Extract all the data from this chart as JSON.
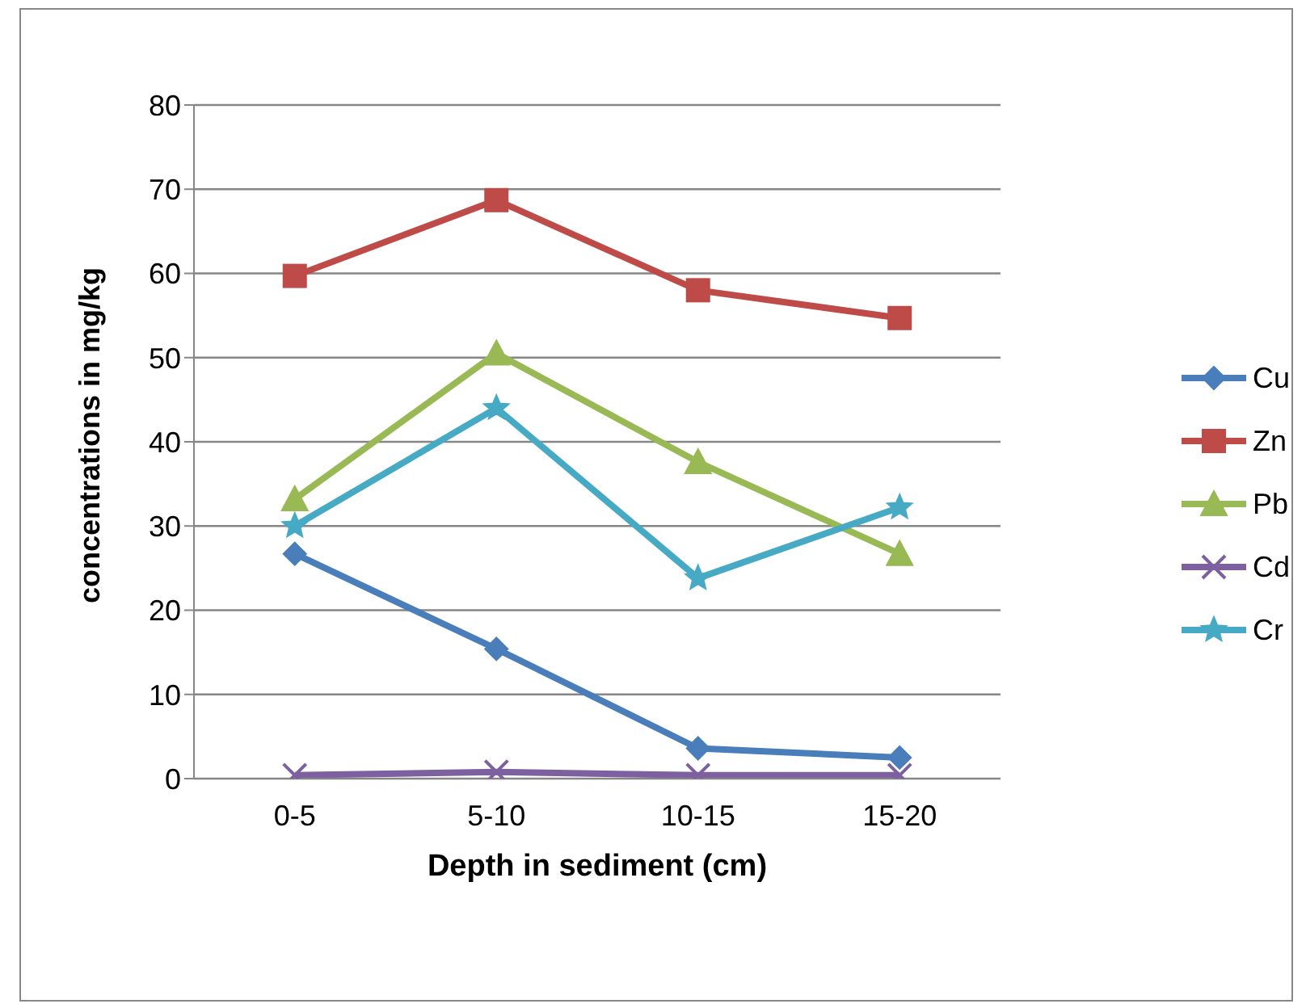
{
  "chart_data": {
    "type": "line",
    "xlabel": "Depth in sediment (cm)",
    "ylabel": "concentrations in mg/kg",
    "categories": [
      "0-5",
      "5-10",
      "10-15",
      "15-20"
    ],
    "series": [
      {
        "name": "Cu",
        "color": "#4a7ebb",
        "marker": "diamond",
        "values": [
          26.7,
          15.4,
          3.6,
          2.5
        ]
      },
      {
        "name": "Zn",
        "color": "#be4b48",
        "marker": "square",
        "values": [
          59.7,
          68.7,
          58,
          54.7
        ]
      },
      {
        "name": "Pb",
        "color": "#98b954",
        "marker": "triangle",
        "values": [
          33.2,
          50.5,
          37.6,
          26.7
        ]
      },
      {
        "name": "Cd",
        "color": "#7d60a0",
        "marker": "cross",
        "values": [
          0.4,
          0.8,
          0.4,
          0.4
        ]
      },
      {
        "name": "Cr",
        "color": "#46aac5",
        "marker": "star",
        "values": [
          30,
          44,
          23.8,
          32.2
        ]
      }
    ],
    "ylim": [
      0,
      80
    ],
    "yticks": [
      0,
      10,
      20,
      30,
      40,
      50,
      60,
      70,
      80
    ],
    "grid": "y",
    "legend": "right"
  }
}
